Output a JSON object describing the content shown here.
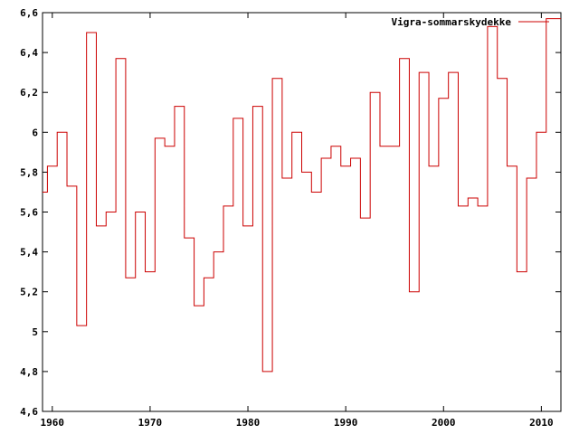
{
  "chart_data": {
    "type": "line",
    "step": true,
    "title": "",
    "xlabel": "",
    "ylabel": "",
    "xlim": [
      1959,
      2012
    ],
    "ylim": [
      4.6,
      6.6
    ],
    "xticks": [
      1960,
      1970,
      1980,
      1990,
      2000,
      2010
    ],
    "yticks": [
      4.6,
      4.8,
      5,
      5.2,
      5.4,
      5.6,
      5.8,
      6,
      6.2,
      6.4,
      6.6
    ],
    "ytick_labels": [
      "4,6",
      "4,8",
      "5",
      "5,2",
      "5,4",
      "5,6",
      "5,8",
      "6",
      "6,2",
      "6,4",
      "6,6"
    ],
    "xtick_labels": [
      "1960",
      "1970",
      "1980",
      "1990",
      "2000",
      "2010"
    ],
    "grid": false,
    "legend_position": "top-right",
    "series": [
      {
        "name": "Vigra-sommarskydekke",
        "color": "#cc0000",
        "x": [
          1959,
          1960,
          1961,
          1962,
          1963,
          1964,
          1965,
          1966,
          1967,
          1968,
          1969,
          1970,
          1971,
          1972,
          1973,
          1974,
          1975,
          1976,
          1977,
          1978,
          1979,
          1980,
          1981,
          1982,
          1983,
          1984,
          1985,
          1986,
          1987,
          1988,
          1989,
          1990,
          1991,
          1992,
          1993,
          1994,
          1995,
          1996,
          1997,
          1998,
          1999,
          2000,
          2001,
          2002,
          2003,
          2004,
          2005,
          2006,
          2007,
          2008,
          2009,
          2010,
          2011
        ],
        "y": [
          5.7,
          5.83,
          6.0,
          5.73,
          5.03,
          6.5,
          5.53,
          5.6,
          6.37,
          5.27,
          5.6,
          5.3,
          5.97,
          5.93,
          6.13,
          5.47,
          5.13,
          5.27,
          5.4,
          5.63,
          6.07,
          5.53,
          6.13,
          4.8,
          6.27,
          5.77,
          6.0,
          5.8,
          5.7,
          5.87,
          5.93,
          5.83,
          5.87,
          5.57,
          6.2,
          5.93,
          5.93,
          6.37,
          5.2,
          6.3,
          5.83,
          6.17,
          6.3,
          5.63,
          5.67,
          5.63,
          6.53,
          6.27,
          5.83,
          5.3,
          5.77,
          6.0,
          6.57
        ]
      }
    ]
  }
}
